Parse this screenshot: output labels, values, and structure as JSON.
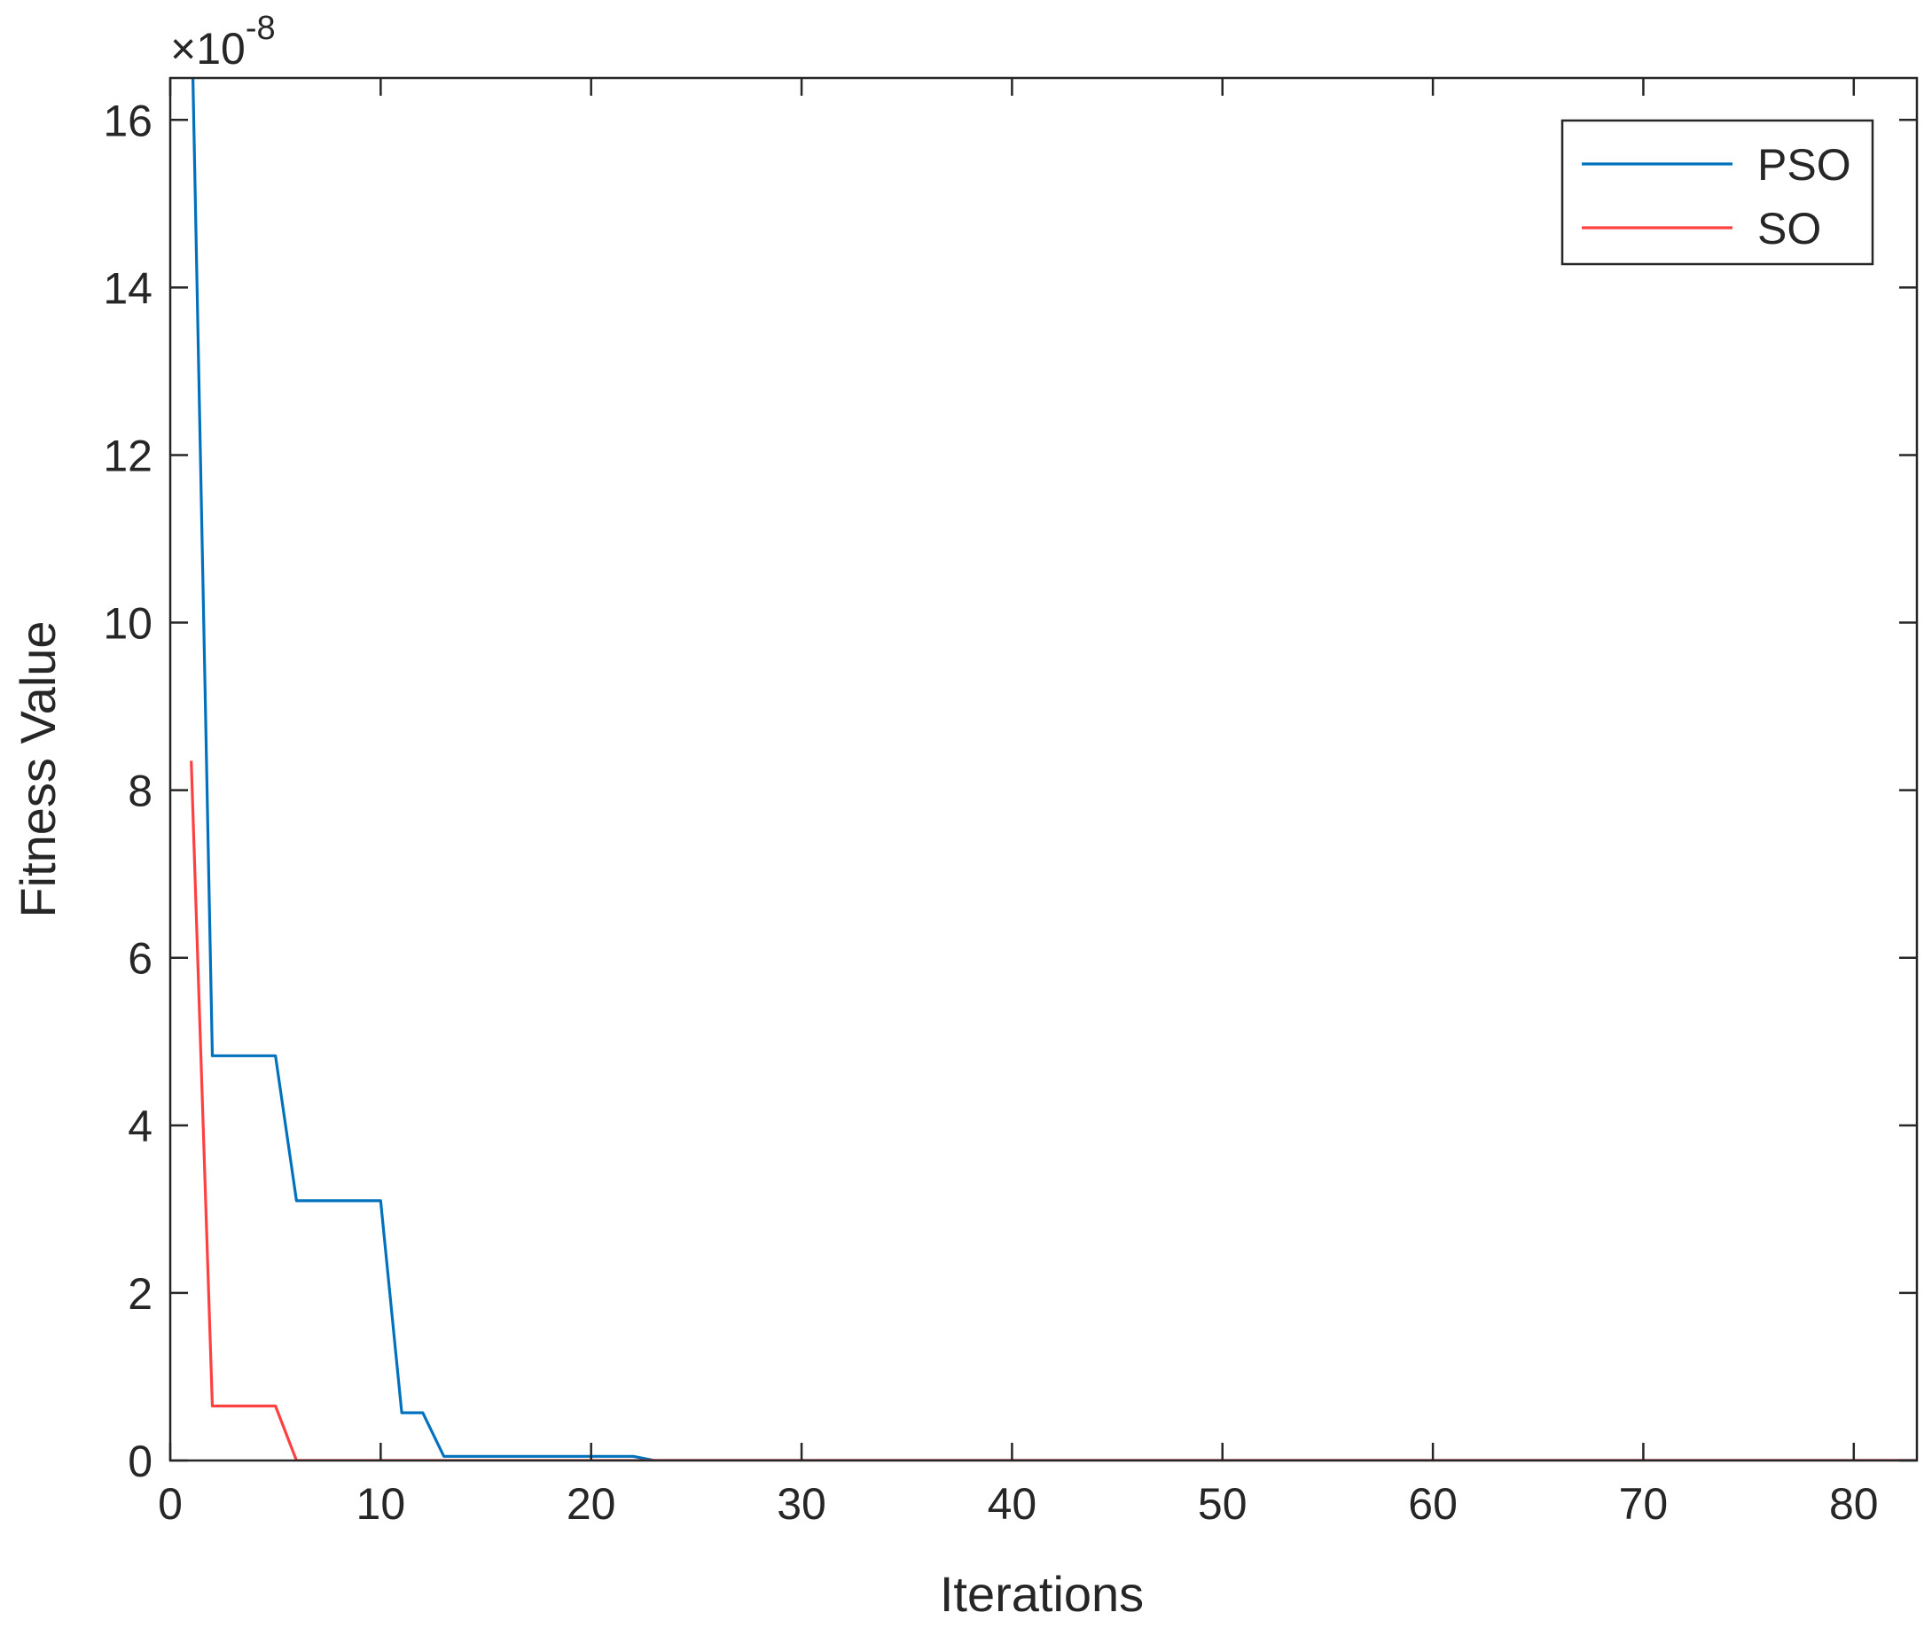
{
  "chart_data": {
    "type": "line",
    "title": "",
    "xlabel": "Iterations",
    "ylabel": "Fitness Value",
    "y_exponent": {
      "prefix": "×10",
      "power": "-8"
    },
    "xlim": [
      0,
      83
    ],
    "ylim": [
      0,
      16.5
    ],
    "x_ticks": [
      0,
      10,
      20,
      30,
      40,
      50,
      60,
      70,
      80
    ],
    "y_ticks": [
      0,
      2,
      4,
      6,
      8,
      10,
      12,
      14,
      16
    ],
    "grid": false,
    "legend_position": "top-right",
    "series": [
      {
        "name": "PSO",
        "color": "#0072BD",
        "points": [
          [
            1,
            17.5
          ],
          [
            2,
            4.83
          ],
          [
            3,
            4.83
          ],
          [
            4,
            4.83
          ],
          [
            5,
            4.83
          ],
          [
            6,
            3.1
          ],
          [
            7,
            3.1
          ],
          [
            8,
            3.1
          ],
          [
            9,
            3.1
          ],
          [
            10,
            3.1
          ],
          [
            11,
            0.57
          ],
          [
            12,
            0.57
          ],
          [
            13,
            0.05
          ],
          [
            14,
            0.05
          ],
          [
            15,
            0.05
          ],
          [
            16,
            0.05
          ],
          [
            17,
            0.05
          ],
          [
            18,
            0.05
          ],
          [
            19,
            0.05
          ],
          [
            20,
            0.05
          ],
          [
            21,
            0.05
          ],
          [
            22,
            0.05
          ],
          [
            23,
            0.0
          ],
          [
            83,
            0.0
          ]
        ]
      },
      {
        "name": "SO",
        "color": "#FF4040",
        "points": [
          [
            1,
            8.35
          ],
          [
            2,
            0.65
          ],
          [
            3,
            0.65
          ],
          [
            4,
            0.65
          ],
          [
            5,
            0.65
          ],
          [
            6,
            0.0
          ],
          [
            83,
            0.0
          ]
        ]
      }
    ]
  }
}
